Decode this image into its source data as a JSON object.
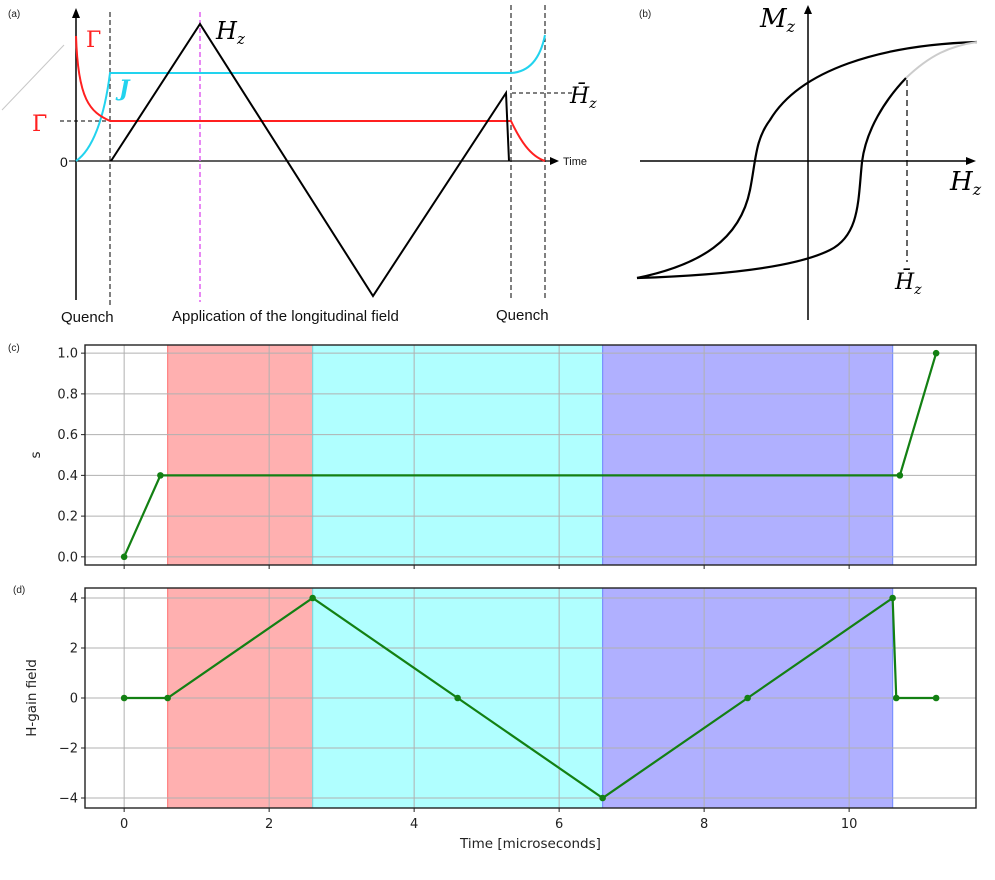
{
  "panels": {
    "a": {
      "tag": "(a)",
      "labels": {
        "gamma": "Γ",
        "gamma_bar": "Γ̄",
        "J": "J",
        "Hz": "H",
        "Hz_sub": "z",
        "Hz_bar": "H̄",
        "Hz_bar_sub": "z",
        "zero": "0",
        "time": "Time",
        "quench_left": "Quench",
        "application": "Application of the longitudinal field",
        "quench_right": "Quench"
      },
      "colors": {
        "gamma": "#ff2020",
        "J": "#22d3ee",
        "Hz": "#000000",
        "application_line": "#e060f0"
      }
    },
    "b": {
      "tag": "(b)",
      "labels": {
        "Mz": "M",
        "Mz_sub": "z",
        "Hz": "H",
        "Hz_sub": "z",
        "Hz_bar": "H̄",
        "Hz_bar_sub": "z"
      }
    },
    "c": {
      "tag": "(c)"
    },
    "d": {
      "tag": "(d)"
    }
  },
  "chart_data": [
    {
      "type": "line",
      "panel": "c",
      "title": "",
      "xlabel": "",
      "ylabel": "s",
      "xlim": [
        -0.54,
        11.75
      ],
      "ylim": [
        -0.04,
        1.04
      ],
      "yticks": [
        0.0,
        0.2,
        0.4,
        0.6,
        0.8,
        1.0
      ],
      "ytick_labels": [
        "0.0",
        "0.2",
        "0.4",
        "0.6",
        "0.8",
        "1.0"
      ],
      "xticks": [
        0,
        2,
        4,
        6,
        8,
        10
      ],
      "grid": true,
      "color": "#138013",
      "x": [
        0,
        0.5,
        10.7,
        11.2
      ],
      "y": [
        0.0,
        0.4,
        0.4,
        1.0
      ],
      "shaded_regions": [
        {
          "x0": 0.6,
          "x1": 2.6,
          "color": "#ffb0b0",
          "edge": "#ff8080"
        },
        {
          "x0": 2.6,
          "x1": 6.6,
          "color": "#b0ffff",
          "edge": "#80d8e0"
        },
        {
          "x0": 6.6,
          "x1": 10.6,
          "color": "#b0b0ff",
          "edge": "#7a90ff"
        }
      ]
    },
    {
      "type": "line",
      "panel": "d",
      "title": "",
      "xlabel": "Time [microseconds]",
      "ylabel": "H-gain field",
      "xlim": [
        -0.54,
        11.75
      ],
      "ylim": [
        -4.4,
        4.4
      ],
      "yticks": [
        -4,
        -2,
        0,
        2,
        4
      ],
      "ytick_labels": [
        "−4",
        "−2",
        "0",
        "2",
        "4"
      ],
      "xticks": [
        0,
        2,
        4,
        6,
        8,
        10
      ],
      "xtick_labels": [
        "0",
        "2",
        "4",
        "6",
        "8",
        "10"
      ],
      "grid": true,
      "color": "#138013",
      "x": [
        0,
        0.6,
        2.6,
        4.6,
        6.6,
        8.6,
        10.6,
        10.65,
        11.2
      ],
      "y": [
        0,
        0,
        4,
        0,
        -4,
        0,
        4,
        0,
        0
      ],
      "shaded_regions": [
        {
          "x0": 0.6,
          "x1": 2.6,
          "color": "#ffb0b0",
          "edge": "#ff8080"
        },
        {
          "x0": 2.6,
          "x1": 6.6,
          "color": "#b0ffff",
          "edge": "#80d8e0"
        },
        {
          "x0": 6.6,
          "x1": 10.6,
          "color": "#b0b0ff",
          "edge": "#7a90ff"
        }
      ]
    }
  ]
}
